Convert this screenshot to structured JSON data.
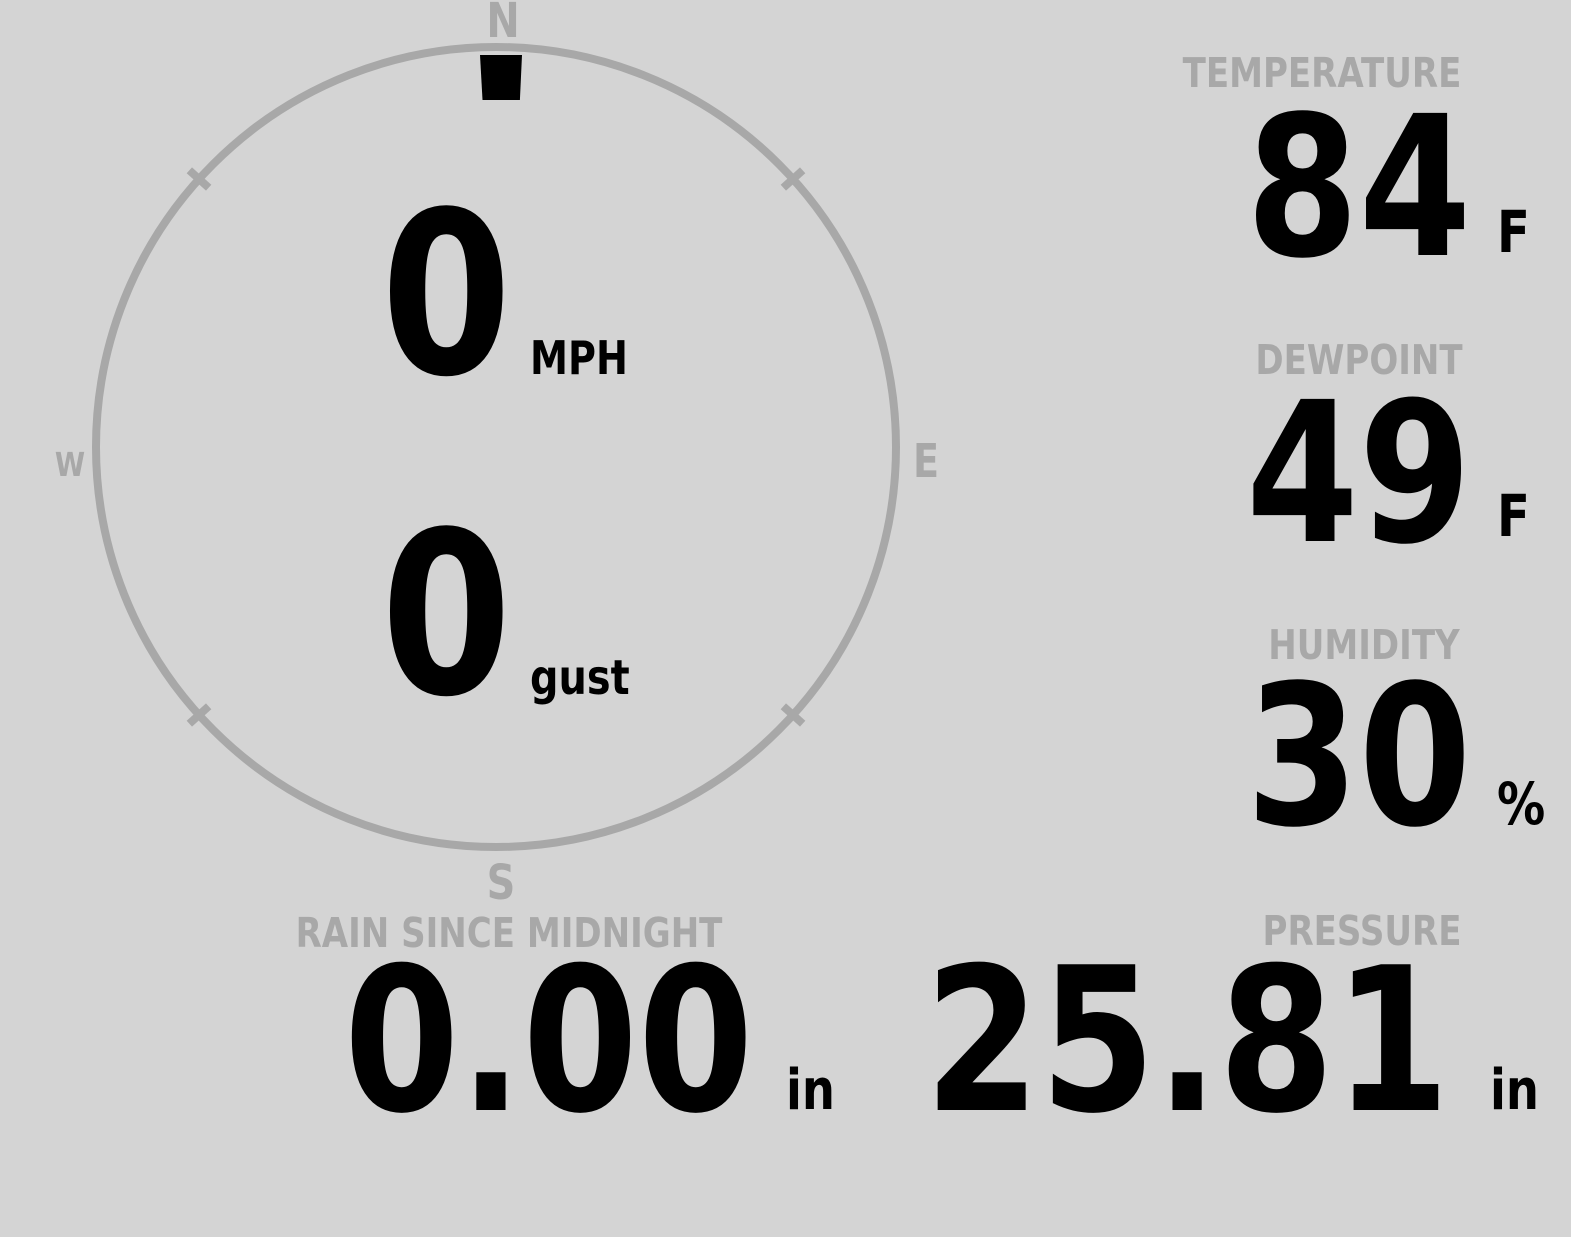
{
  "colors": {
    "bg": "#d4d4d4",
    "muted": "#a8a8a8",
    "ink": "#000000"
  },
  "compass": {
    "directions": {
      "north": "N",
      "east": "E",
      "south": "S",
      "west": "W"
    },
    "wind_speed": {
      "value": "0",
      "unit": "MPH"
    },
    "wind_gust": {
      "value": "0",
      "unit": "gust"
    },
    "marker_direction": "N"
  },
  "metrics": {
    "temperature": {
      "label": "TEMPERATURE",
      "value": "84",
      "unit": "F"
    },
    "dewpoint": {
      "label": "DEWPOINT",
      "value": "49",
      "unit": "F"
    },
    "humidity": {
      "label": "HUMIDITY",
      "value": "30",
      "unit": "%"
    },
    "rain": {
      "label": "RAIN SINCE MIDNIGHT",
      "value": "0.00",
      "unit": "in"
    },
    "pressure": {
      "label": "PRESSURE",
      "value": "25.81",
      "unit": "in"
    }
  }
}
